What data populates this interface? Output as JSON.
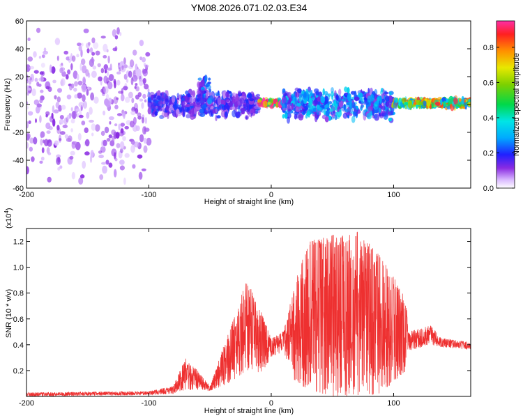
{
  "title": "YM08.2026.071.02.03.E34",
  "colors": {
    "trace": "#ee3030",
    "background": "#ffffff",
    "axis": "#000000"
  },
  "chart_data": [
    {
      "type": "heatmap",
      "name": "spectrogram",
      "xlabel": "Height of straight line (km)",
      "ylabel": "Frequency (Hz)",
      "xlim": [
        -200,
        163
      ],
      "ylim": [
        -60,
        60
      ],
      "xticks": [
        -200,
        -100,
        0,
        100
      ],
      "xtick_labels": [
        "-200",
        "-100",
        "0",
        "100"
      ],
      "yticks": [
        -60,
        -40,
        -20,
        0,
        20,
        40,
        60
      ],
      "ytick_labels": [
        "-60",
        "-40",
        "-20",
        "0",
        "20",
        "40",
        "60"
      ],
      "colorbar": {
        "label": "Normalized spectral amplitude",
        "range": [
          0,
          0.95
        ],
        "ticks": [
          0.0,
          0.2,
          0.4,
          0.6,
          0.8
        ],
        "tick_labels": [
          "0.0",
          "0.2",
          "0.4",
          "0.6",
          "0.8"
        ]
      },
      "bands": [
        {
          "x": [
            -200,
            -100
          ],
          "center": 0,
          "half_width": 60,
          "amplitude": 0.1
        },
        {
          "x": [
            -100,
            -10
          ],
          "center": 0,
          "half_width": 10,
          "amplitude": 0.2
        },
        {
          "x": [
            -60,
            -50
          ],
          "center": 10,
          "half_width": 15,
          "amplitude": 0.25
        },
        {
          "x": [
            -10,
            10
          ],
          "center": 1,
          "half_width": 2,
          "amplitude": 0.9
        },
        {
          "x": [
            10,
            100
          ],
          "center": 0,
          "half_width": 12,
          "amplitude": 0.3
        },
        {
          "x": [
            100,
            163
          ],
          "center": 1,
          "half_width": 3,
          "amplitude": 0.75
        }
      ]
    },
    {
      "type": "line",
      "name": "snr",
      "xlabel": "Height of straight line (km)",
      "ylabel": "SNR (10 * v/v)",
      "yscale_label": "(x10",
      "yscale_exp": "4",
      "yscale_close": ")",
      "xlim": [
        -200,
        163
      ],
      "ylim": [
        0,
        1.3
      ],
      "xticks": [
        -200,
        -100,
        0,
        100
      ],
      "xtick_labels": [
        "-200",
        "-100",
        "0",
        "100"
      ],
      "yticks": [
        0.2,
        0.4,
        0.6,
        0.8,
        1.0,
        1.2
      ],
      "ytick_labels": [
        "0.2",
        "0.4",
        "0.6",
        "0.8",
        "1.0",
        "1.2"
      ],
      "envelope": [
        {
          "x": -200,
          "low": 0.0,
          "high": 0.03
        },
        {
          "x": -100,
          "low": 0.01,
          "high": 0.04
        },
        {
          "x": -80,
          "low": 0.02,
          "high": 0.08
        },
        {
          "x": -70,
          "low": 0.05,
          "high": 0.3
        },
        {
          "x": -60,
          "low": 0.05,
          "high": 0.2
        },
        {
          "x": -50,
          "low": 0.04,
          "high": 0.08
        },
        {
          "x": -35,
          "low": 0.1,
          "high": 0.5
        },
        {
          "x": -20,
          "low": 0.2,
          "high": 0.9
        },
        {
          "x": -10,
          "low": 0.15,
          "high": 0.7
        },
        {
          "x": 0,
          "low": 0.3,
          "high": 0.45
        },
        {
          "x": 10,
          "low": 0.35,
          "high": 0.5
        },
        {
          "x": 20,
          "low": 0.1,
          "high": 0.9
        },
        {
          "x": 30,
          "low": 0.05,
          "high": 1.2
        },
        {
          "x": 50,
          "low": 0.0,
          "high": 1.25
        },
        {
          "x": 70,
          "low": 0.0,
          "high": 1.28
        },
        {
          "x": 90,
          "low": 0.02,
          "high": 1.1
        },
        {
          "x": 110,
          "low": 0.2,
          "high": 0.75
        },
        {
          "x": 112,
          "low": 0.35,
          "high": 0.5
        },
        {
          "x": 130,
          "low": 0.4,
          "high": 0.55
        },
        {
          "x": 140,
          "low": 0.38,
          "high": 0.45
        },
        {
          "x": 163,
          "low": 0.36,
          "high": 0.42
        }
      ]
    }
  ]
}
